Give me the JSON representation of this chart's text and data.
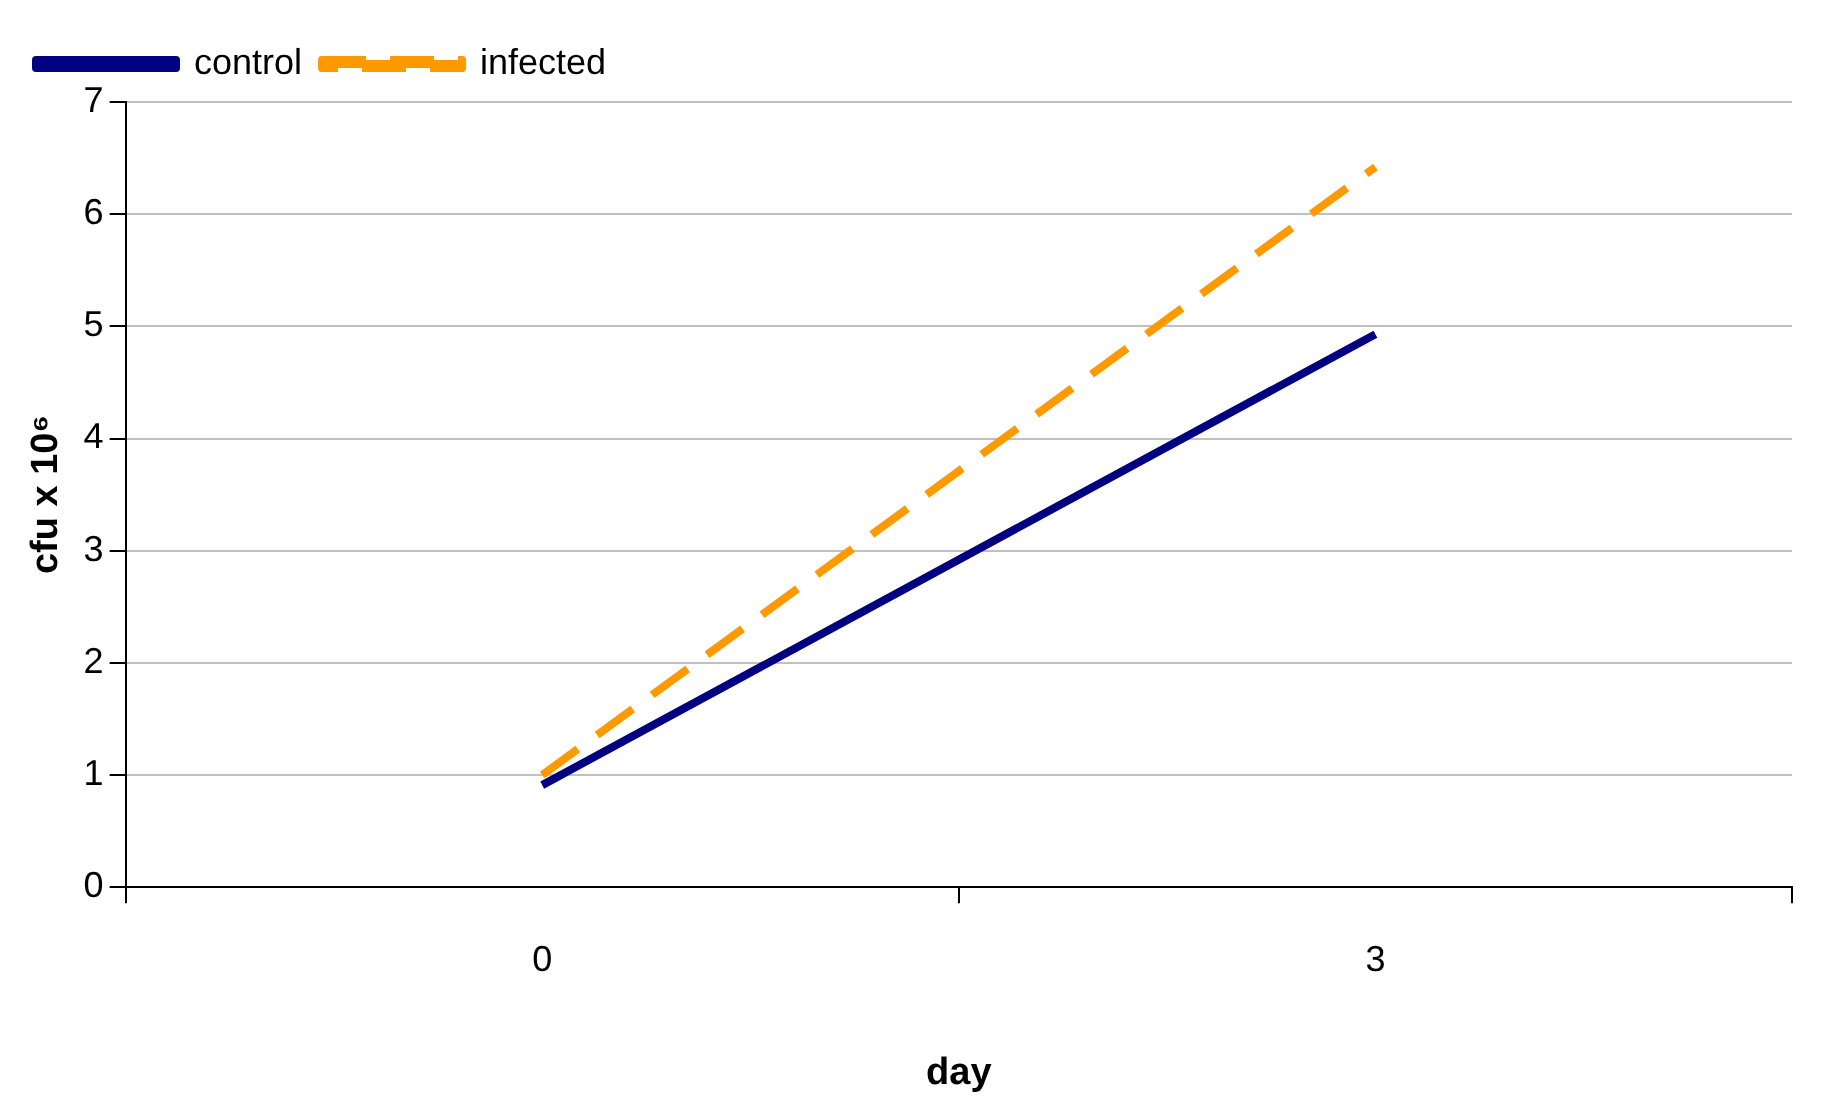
{
  "chart_data": {
    "type": "line",
    "xlabel": "day",
    "ylabel": "cfu x 10⁶",
    "categories": [
      "0",
      "3"
    ],
    "series": [
      {
        "name": "control",
        "color": "#000080",
        "values": [
          0.91,
          4.93
        ],
        "line_style": "solid"
      },
      {
        "name": "infected",
        "color": "#ff9900",
        "values": [
          1.0,
          6.42
        ],
        "line_style": "dashed"
      }
    ],
    "ylim": [
      0,
      7
    ],
    "yticks": [
      0,
      1,
      2,
      3,
      4,
      5,
      6,
      7
    ],
    "grid": "y",
    "legend": "top left",
    "marker": "none"
  }
}
